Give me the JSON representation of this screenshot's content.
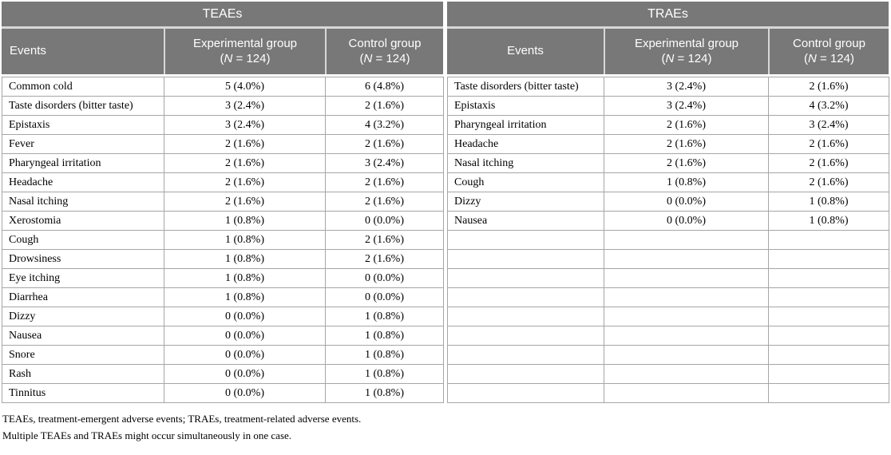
{
  "colors": {
    "header_bg": "#787878",
    "header_text": "#ffffff",
    "grid_border": "#a6a6a6",
    "head_sep": "#d8d8d8",
    "body_text": "#000000"
  },
  "tables": [
    {
      "title": "TEAEs",
      "columns": {
        "events": "Events",
        "experimental": "Experimental group",
        "control": "Control group"
      },
      "n_open": "(",
      "n_italic": "N",
      "n_close": " = 124)",
      "empty_row_count": 0,
      "rows": [
        {
          "event": "Common cold",
          "experimental": "5 (4.0%)",
          "control": "6 (4.8%)"
        },
        {
          "event": "Taste disorders (bitter taste)",
          "experimental": "3 (2.4%)",
          "control": "2 (1.6%)"
        },
        {
          "event": "Epistaxis",
          "experimental": "3 (2.4%)",
          "control": "4 (3.2%)"
        },
        {
          "event": "Fever",
          "experimental": "2 (1.6%)",
          "control": "2 (1.6%)"
        },
        {
          "event": "Pharyngeal irritation",
          "experimental": "2 (1.6%)",
          "control": "3 (2.4%)"
        },
        {
          "event": "Headache",
          "experimental": "2 (1.6%)",
          "control": "2 (1.6%)"
        },
        {
          "event": "Nasal itching",
          "experimental": "2 (1.6%)",
          "control": "2 (1.6%)"
        },
        {
          "event": "Xerostomia",
          "experimental": "1 (0.8%)",
          "control": "0 (0.0%)"
        },
        {
          "event": "Cough",
          "experimental": "1 (0.8%)",
          "control": "2 (1.6%)"
        },
        {
          "event": "Drowsiness",
          "experimental": "1 (0.8%)",
          "control": "2 (1.6%)"
        },
        {
          "event": "Eye itching",
          "experimental": "1 (0.8%)",
          "control": "0 (0.0%)"
        },
        {
          "event": "Diarrhea",
          "experimental": "1 (0.8%)",
          "control": "0 (0.0%)"
        },
        {
          "event": "Dizzy",
          "experimental": "0 (0.0%)",
          "control": "1 (0.8%)"
        },
        {
          "event": "Nausea",
          "experimental": "0 (0.0%)",
          "control": "1 (0.8%)"
        },
        {
          "event": "Snore",
          "experimental": "0 (0.0%)",
          "control": "1 (0.8%)"
        },
        {
          "event": "Rash",
          "experimental": "0 (0.0%)",
          "control": "1 (0.8%)"
        },
        {
          "event": "Tinnitus",
          "experimental": "0 (0.0%)",
          "control": "1 (0.8%)"
        }
      ]
    },
    {
      "title": "TRAEs",
      "columns": {
        "events": "Events",
        "experimental": "Experimental group",
        "control": "Control group"
      },
      "n_open": "(",
      "n_italic": "N",
      "n_close": " = 124)",
      "empty_row_count": 9,
      "rows": [
        {
          "event": "Taste disorders (bitter taste)",
          "experimental": "3 (2.4%)",
          "control": "2 (1.6%)"
        },
        {
          "event": "Epistaxis",
          "experimental": "3 (2.4%)",
          "control": "4 (3.2%)"
        },
        {
          "event": "Pharyngeal irritation",
          "experimental": "2 (1.6%)",
          "control": "3 (2.4%)"
        },
        {
          "event": "Headache",
          "experimental": "2 (1.6%)",
          "control": "2 (1.6%)"
        },
        {
          "event": "Nasal itching",
          "experimental": "2 (1.6%)",
          "control": "2 (1.6%)"
        },
        {
          "event": "Cough",
          "experimental": "1 (0.8%)",
          "control": "2 (1.6%)"
        },
        {
          "event": "Dizzy",
          "experimental": "0 (0.0%)",
          "control": "1 (0.8%)"
        },
        {
          "event": "Nausea",
          "experimental": "0 (0.0%)",
          "control": "1 (0.8%)"
        }
      ]
    }
  ],
  "footnotes": [
    "TEAEs, treatment-emergent adverse events; TRAEs, treatment-related adverse events.",
    "Multiple TEAEs and TRAEs might occur simultaneously in one case."
  ]
}
